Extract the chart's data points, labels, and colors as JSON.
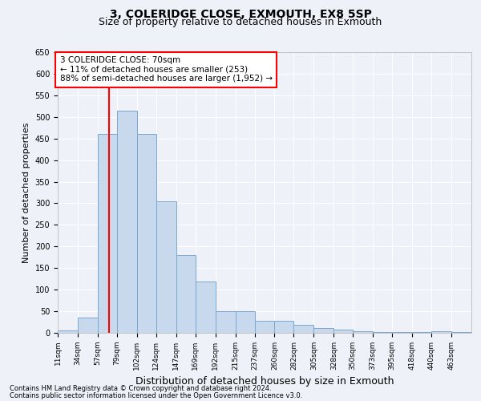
{
  "title1": "3, COLERIDGE CLOSE, EXMOUTH, EX8 5SP",
  "title2": "Size of property relative to detached houses in Exmouth",
  "xlabel": "Distribution of detached houses by size in Exmouth",
  "ylabel": "Number of detached properties",
  "footnote1": "Contains HM Land Registry data © Crown copyright and database right 2024.",
  "footnote2": "Contains public sector information licensed under the Open Government Licence v3.0.",
  "annotation_line1": "3 COLERIDGE CLOSE: 70sqm",
  "annotation_line2": "← 11% of detached houses are smaller (253)",
  "annotation_line3": "88% of semi-detached houses are larger (1,952) →",
  "property_size": 70,
  "bar_color": "#c9d9ed",
  "bar_edge_color": "#7aa8d0",
  "vline_color": "red",
  "vline_x": 70,
  "categories": [
    "11sqm",
    "34sqm",
    "57sqm",
    "79sqm",
    "102sqm",
    "124sqm",
    "147sqm",
    "169sqm",
    "192sqm",
    "215sqm",
    "237sqm",
    "260sqm",
    "282sqm",
    "305sqm",
    "328sqm",
    "350sqm",
    "373sqm",
    "395sqm",
    "418sqm",
    "440sqm",
    "463sqm"
  ],
  "bin_edges": [
    11,
    34,
    57,
    79,
    102,
    124,
    147,
    169,
    192,
    215,
    237,
    260,
    282,
    305,
    328,
    350,
    373,
    395,
    418,
    440,
    463,
    486
  ],
  "values": [
    5,
    35,
    460,
    515,
    460,
    305,
    180,
    118,
    50,
    50,
    27,
    27,
    18,
    12,
    8,
    4,
    1,
    1,
    1,
    4,
    1
  ],
  "ylim": [
    0,
    650
  ],
  "yticks": [
    0,
    50,
    100,
    150,
    200,
    250,
    300,
    350,
    400,
    450,
    500,
    550,
    600,
    650
  ],
  "background_color": "#eef2f8",
  "grid_color": "#ffffff",
  "title_fontsize": 10,
  "subtitle_fontsize": 9,
  "ylabel_fontsize": 8,
  "xlabel_fontsize": 9,
  "tick_fontsize": 6.5,
  "annotation_box_color": "white",
  "annotation_box_edgecolor": "red",
  "annotation_fontsize": 7.5
}
